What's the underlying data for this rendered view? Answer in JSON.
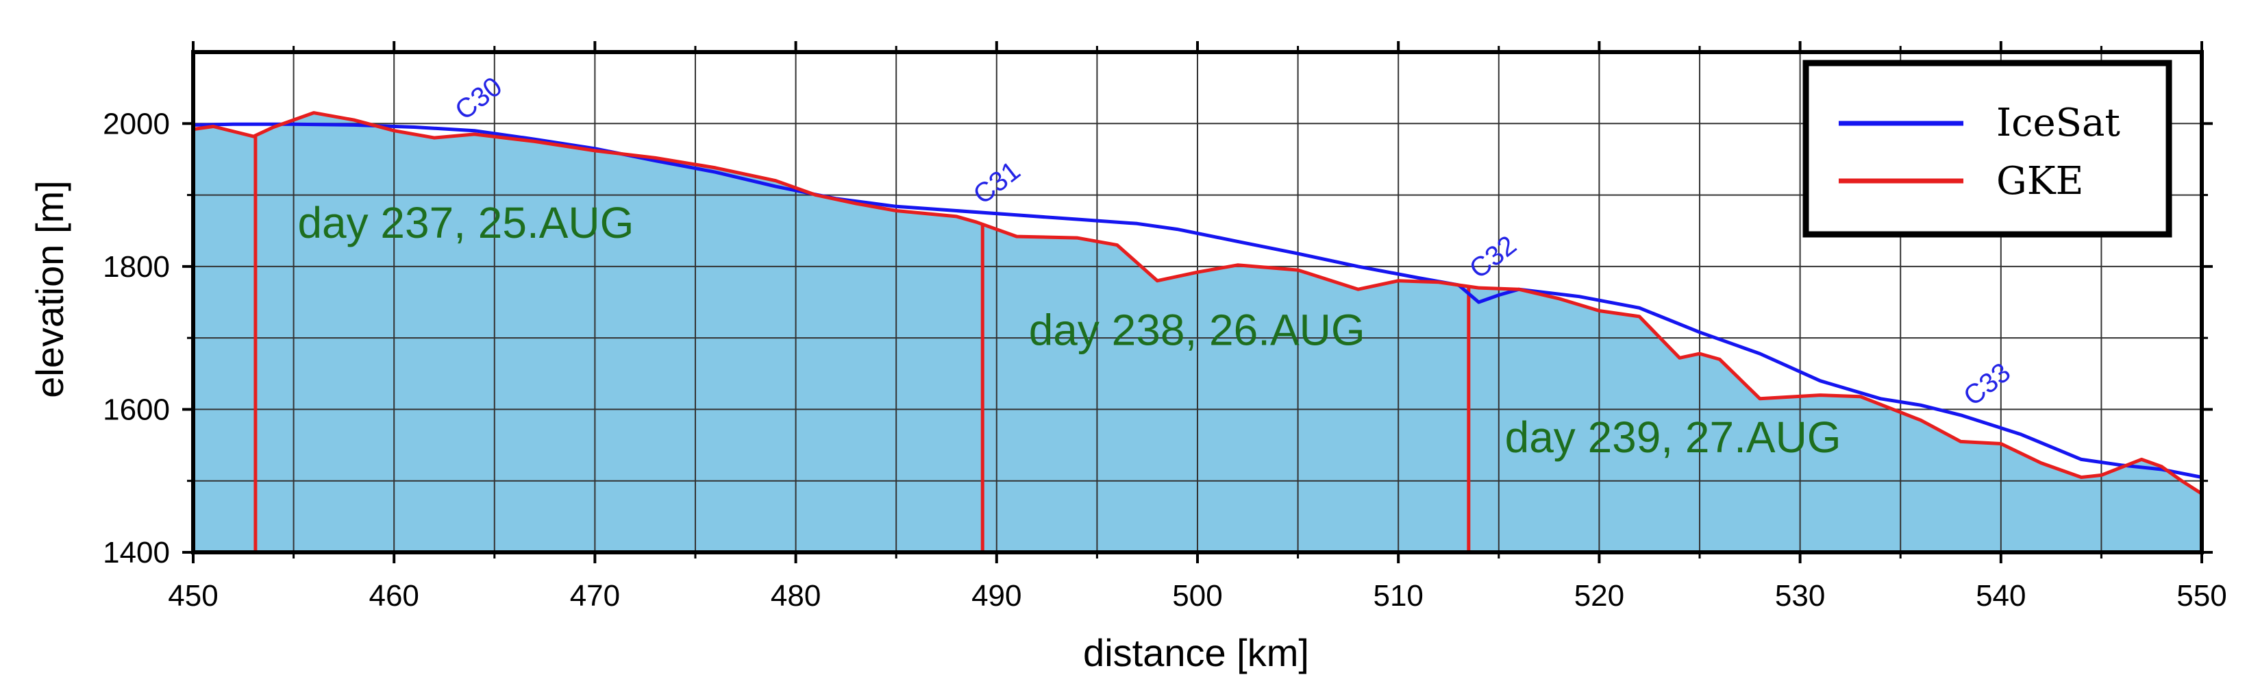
{
  "chart_data": {
    "type": "line",
    "xlabel": "distance [km]",
    "ylabel": "elevation [m]",
    "xlim": [
      450,
      550
    ],
    "ylim": [
      1400,
      2100
    ],
    "x_ticks": [
      450,
      460,
      470,
      480,
      490,
      500,
      510,
      520,
      530,
      540,
      550
    ],
    "x_ticks_minor": [
      455,
      465,
      475,
      485,
      495,
      505,
      515,
      525,
      535,
      545
    ],
    "y_ticks": [
      1400,
      1600,
      1800,
      2000
    ],
    "y_ticks_minor": [
      1500,
      1700,
      1900
    ],
    "grid": true,
    "legend_position": "top-right",
    "area_fill": "#85c8e6",
    "series": [
      {
        "name": "IceSat",
        "color": "#1515f0",
        "points": [
          [
            450,
            1998
          ],
          [
            452,
            1999
          ],
          [
            455,
            1999
          ],
          [
            458,
            1998
          ],
          [
            461,
            1995
          ],
          [
            464,
            1990
          ],
          [
            467,
            1978
          ],
          [
            470,
            1965
          ],
          [
            473,
            1948
          ],
          [
            476,
            1932
          ],
          [
            479,
            1912
          ],
          [
            482,
            1895
          ],
          [
            485,
            1884
          ],
          [
            488,
            1878
          ],
          [
            491,
            1872
          ],
          [
            494,
            1866
          ],
          [
            497,
            1860
          ],
          [
            499,
            1852
          ],
          [
            502,
            1835
          ],
          [
            505,
            1818
          ],
          [
            508,
            1800
          ],
          [
            511,
            1784
          ],
          [
            513,
            1774
          ],
          [
            514,
            1750
          ],
          [
            515,
            1760
          ],
          [
            516,
            1768
          ],
          [
            519,
            1758
          ],
          [
            522,
            1742
          ],
          [
            525,
            1708
          ],
          [
            528,
            1678
          ],
          [
            531,
            1640
          ],
          [
            534,
            1615
          ],
          [
            536,
            1606
          ],
          [
            538,
            1592
          ],
          [
            541,
            1565
          ],
          [
            544,
            1530
          ],
          [
            546,
            1522
          ],
          [
            548,
            1516
          ],
          [
            550,
            1505
          ]
        ]
      },
      {
        "name": "GKE",
        "color": "#e61e1e",
        "points": [
          [
            450,
            1992
          ],
          [
            451,
            1996
          ],
          [
            453,
            1982
          ],
          [
            454,
            1995
          ],
          [
            456,
            2015
          ],
          [
            458,
            2005
          ],
          [
            460,
            1990
          ],
          [
            462,
            1980
          ],
          [
            464,
            1985
          ],
          [
            467,
            1975
          ],
          [
            470,
            1962
          ],
          [
            473,
            1952
          ],
          [
            476,
            1938
          ],
          [
            479,
            1920
          ],
          [
            481,
            1900
          ],
          [
            483,
            1888
          ],
          [
            485,
            1878
          ],
          [
            488,
            1870
          ],
          [
            489,
            1862
          ],
          [
            491,
            1842
          ],
          [
            494,
            1840
          ],
          [
            496,
            1830
          ],
          [
            498,
            1780
          ],
          [
            500,
            1792
          ],
          [
            502,
            1802
          ],
          [
            505,
            1795
          ],
          [
            508,
            1768
          ],
          [
            510,
            1780
          ],
          [
            512,
            1778
          ],
          [
            514,
            1770
          ],
          [
            516,
            1768
          ],
          [
            518,
            1755
          ],
          [
            520,
            1738
          ],
          [
            522,
            1730
          ],
          [
            524,
            1672
          ],
          [
            525,
            1678
          ],
          [
            526,
            1670
          ],
          [
            528,
            1615
          ],
          [
            531,
            1620
          ],
          [
            533,
            1618
          ],
          [
            536,
            1585
          ],
          [
            538,
            1555
          ],
          [
            540,
            1552
          ],
          [
            542,
            1525
          ],
          [
            544,
            1505
          ],
          [
            545,
            1508
          ],
          [
            547,
            1530
          ],
          [
            548,
            1520
          ],
          [
            549,
            1500
          ],
          [
            550,
            1482
          ]
        ]
      }
    ],
    "day_boundaries": [
      453.1,
      489.3,
      513.5
    ],
    "day_labels": [
      {
        "text": "day 237, 25.AUG",
        "x": 455.2,
        "y": 1840
      },
      {
        "text": "day 238, 26.AUG",
        "x": 491.6,
        "y": 1690
      },
      {
        "text": "day 239, 27.AUG",
        "x": 515.3,
        "y": 1540
      }
    ],
    "markers": [
      {
        "text": "C30",
        "x": 463.5,
        "y": 1990,
        "color": "#2424e6"
      },
      {
        "text": "C31",
        "x": 489.3,
        "y": 1872,
        "color": "#2424e6"
      },
      {
        "text": "C32",
        "x": 514.0,
        "y": 1768,
        "color": "#2424e6"
      },
      {
        "text": "C33",
        "x": 538.6,
        "y": 1590,
        "color": "#2424e6"
      }
    ]
  }
}
